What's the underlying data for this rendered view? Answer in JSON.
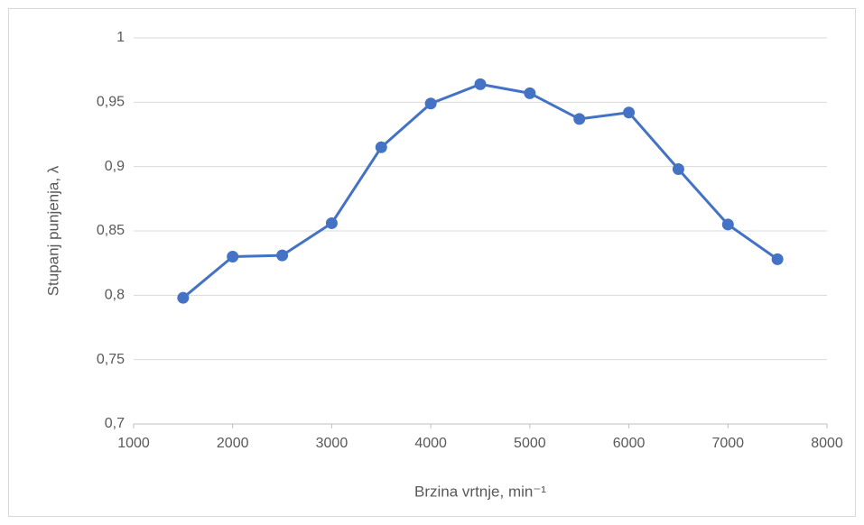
{
  "chart_data": {
    "type": "line",
    "x_label": "Brzina vrtnje, min⁻¹",
    "y_label": "Stupanj punjenja, λ",
    "x": [
      1500,
      2000,
      2500,
      3000,
      3500,
      4000,
      4500,
      5000,
      5500,
      6000,
      6500,
      7000,
      7500
    ],
    "series": [
      {
        "color": "#4472c4",
        "values": [
          0.798,
          0.83,
          0.831,
          0.856,
          0.915,
          0.949,
          0.964,
          0.957,
          0.937,
          0.942,
          0.898,
          0.855,
          0.828
        ]
      }
    ],
    "xlim": [
      1000,
      8000
    ],
    "xticks": [
      1000,
      2000,
      3000,
      4000,
      5000,
      6000,
      7000,
      8000
    ],
    "ylim": [
      0.7,
      1
    ],
    "yticks": [
      {
        "value": 0.7,
        "label": "0,7"
      },
      {
        "value": 0.75,
        "label": "0,75"
      },
      {
        "value": 0.8,
        "label": "0,8"
      },
      {
        "value": 0.85,
        "label": "0,85"
      },
      {
        "value": 0.9,
        "label": "0,9"
      },
      {
        "value": 0.95,
        "label": "0,95"
      },
      1
    ],
    "grid": true
  }
}
